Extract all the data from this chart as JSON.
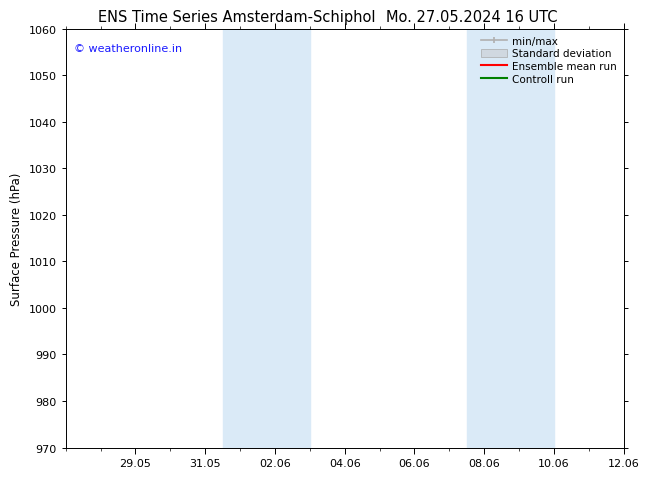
{
  "title_left": "ENS Time Series Amsterdam-Schiphol",
  "title_right": "Mo. 27.05.2024 16 UTC",
  "ylabel": "Surface Pressure (hPa)",
  "ylim": [
    970,
    1060
  ],
  "yticks": [
    970,
    980,
    990,
    1000,
    1010,
    1020,
    1030,
    1040,
    1050,
    1060
  ],
  "xlim": [
    0,
    16
  ],
  "xtick_positions": [
    2,
    4,
    6,
    8,
    10,
    12,
    14,
    16
  ],
  "xtick_labels": [
    "29.05",
    "31.05",
    "02.06",
    "04.06",
    "06.06",
    "08.06",
    "10.06",
    "12.06"
  ],
  "shaded_regions": [
    {
      "start": 4.5,
      "end": 7.0
    },
    {
      "start": 11.5,
      "end": 14.0
    }
  ],
  "shaded_color": "#daeaf7",
  "watermark_text": "© weatheronline.in",
  "watermark_color": "#1a1aff",
  "legend_entries": [
    {
      "label": "min/max",
      "color": "#b0b0b0",
      "style": "minmax"
    },
    {
      "label": "Standard deviation",
      "color": "#d0d8e0",
      "style": "stddev"
    },
    {
      "label": "Ensemble mean run",
      "color": "#ff0000",
      "style": "line"
    },
    {
      "label": "Controll run",
      "color": "#008000",
      "style": "line"
    }
  ],
  "bg_color": "#ffffff",
  "title_fontsize": 10.5,
  "tick_label_fontsize": 8,
  "ylabel_fontsize": 8.5,
  "legend_fontsize": 7.5
}
